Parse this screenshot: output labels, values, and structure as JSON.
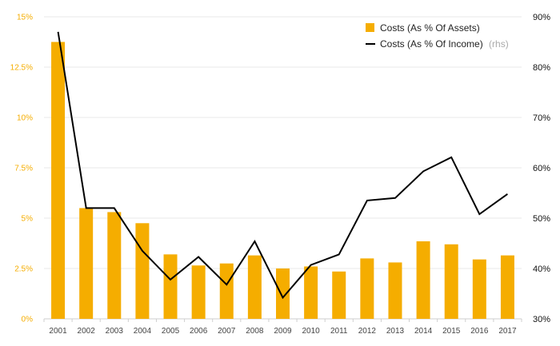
{
  "chart_data": {
    "type": "bar",
    "categories": [
      "2001",
      "2002",
      "2003",
      "2004",
      "2005",
      "2006",
      "2007",
      "2008",
      "2009",
      "2010",
      "2011",
      "2012",
      "2013",
      "2014",
      "2015",
      "2016",
      "2017"
    ],
    "series": [
      {
        "name": "Costs (As % Of Assets)",
        "type": "bar",
        "axis": "left",
        "color": "#f5ad00",
        "values": [
          13.75,
          5.5,
          5.3,
          4.75,
          3.2,
          2.65,
          2.75,
          3.15,
          2.5,
          2.6,
          2.35,
          3.0,
          2.8,
          3.85,
          3.7,
          2.95,
          3.15
        ]
      },
      {
        "name": "Costs (As % Of Income)",
        "name_suffix": "(rhs)",
        "type": "line",
        "axis": "right",
        "color": "#000000",
        "values": [
          87.0,
          52.0,
          52.0,
          43.5,
          37.8,
          42.3,
          36.8,
          45.4,
          34.2,
          40.7,
          42.8,
          53.5,
          54.0,
          59.3,
          62.1,
          50.8,
          54.8
        ]
      }
    ],
    "y_left": {
      "ylim": [
        0,
        15
      ],
      "ticks": [
        0,
        2.5,
        5,
        7.5,
        10,
        12.5,
        15
      ],
      "tick_labels": [
        "0%",
        "2.5%",
        "5%",
        "7.5%",
        "10%",
        "12.5%",
        "15%"
      ]
    },
    "y_right": {
      "ylim": [
        30,
        90
      ],
      "ticks": [
        30,
        40,
        50,
        60,
        70,
        80,
        90
      ],
      "tick_labels": [
        "30%",
        "40%",
        "50%",
        "60%",
        "70%",
        "80%",
        "90%"
      ]
    },
    "grid": true,
    "legend": "top-right",
    "title": "",
    "xlabel": "",
    "ylabel": ""
  }
}
